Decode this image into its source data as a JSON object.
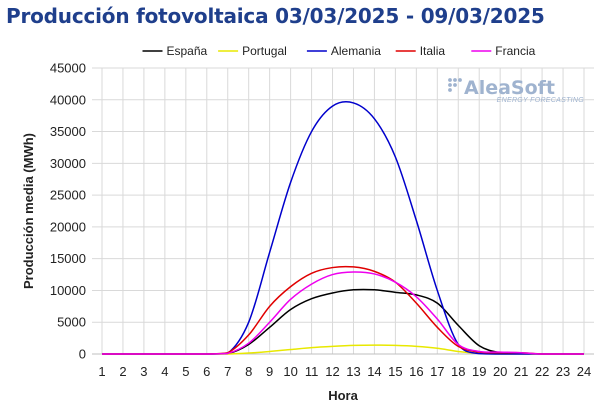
{
  "chart_data": {
    "type": "line",
    "title": "Producción fotovoltaica 03/03/2025 - 09/03/2025",
    "xlabel": "Hora",
    "ylabel": "Producción media (MWh)",
    "xlim": [
      1,
      24
    ],
    "ylim": [
      0,
      45000
    ],
    "y_ticks": [
      "0",
      "5000",
      "10000",
      "15000",
      "20000",
      "25000",
      "30000",
      "35000",
      "40000",
      "45000"
    ],
    "x_ticks": [
      "1",
      "2",
      "3",
      "4",
      "5",
      "6",
      "7",
      "8",
      "9",
      "10",
      "11",
      "12",
      "13",
      "14",
      "15",
      "16",
      "17",
      "18",
      "19",
      "20",
      "21",
      "22",
      "23",
      "24"
    ],
    "grid": true,
    "legend_position": "top",
    "x": [
      1,
      2,
      3,
      4,
      5,
      6,
      7,
      8,
      9,
      10,
      11,
      12,
      13,
      14,
      15,
      16,
      17,
      18,
      19,
      20,
      21,
      22,
      23,
      24
    ],
    "series": [
      {
        "name": "España",
        "color": "#000000",
        "values": [
          0,
          0,
          0,
          0,
          0,
          0,
          50,
          1500,
          4200,
          7000,
          8700,
          9600,
          10100,
          10100,
          9700,
          9300,
          8000,
          4500,
          1300,
          200,
          100,
          0,
          0,
          0
        ]
      },
      {
        "name": "Portugal",
        "color": "#e8e800",
        "values": [
          0,
          0,
          0,
          0,
          0,
          0,
          0,
          150,
          400,
          700,
          1000,
          1200,
          1350,
          1400,
          1350,
          1200,
          900,
          400,
          100,
          0,
          0,
          0,
          0,
          0
        ]
      },
      {
        "name": "Alemania",
        "color": "#0000cc",
        "values": [
          0,
          0,
          0,
          0,
          0,
          0,
          100,
          5000,
          16000,
          27000,
          35000,
          39000,
          39500,
          37000,
          31000,
          21000,
          10000,
          1500,
          50,
          0,
          0,
          0,
          0,
          0
        ]
      },
      {
        "name": "Italia",
        "color": "#e00000",
        "values": [
          0,
          0,
          0,
          0,
          0,
          0,
          200,
          3000,
          7500,
          10600,
          12700,
          13600,
          13700,
          13000,
          11300,
          8000,
          4200,
          1200,
          300,
          200,
          200,
          0,
          0,
          0
        ]
      },
      {
        "name": "Francia",
        "color": "#ee00ee",
        "values": [
          0,
          0,
          0,
          0,
          0,
          0,
          100,
          1700,
          5000,
          8600,
          11000,
          12500,
          12900,
          12600,
          11300,
          9000,
          5500,
          1500,
          400,
          300,
          200,
          0,
          0,
          0
        ]
      }
    ]
  },
  "watermark": {
    "brand": "AleaSoft",
    "tagline": "ENERGY FORECASTING"
  }
}
